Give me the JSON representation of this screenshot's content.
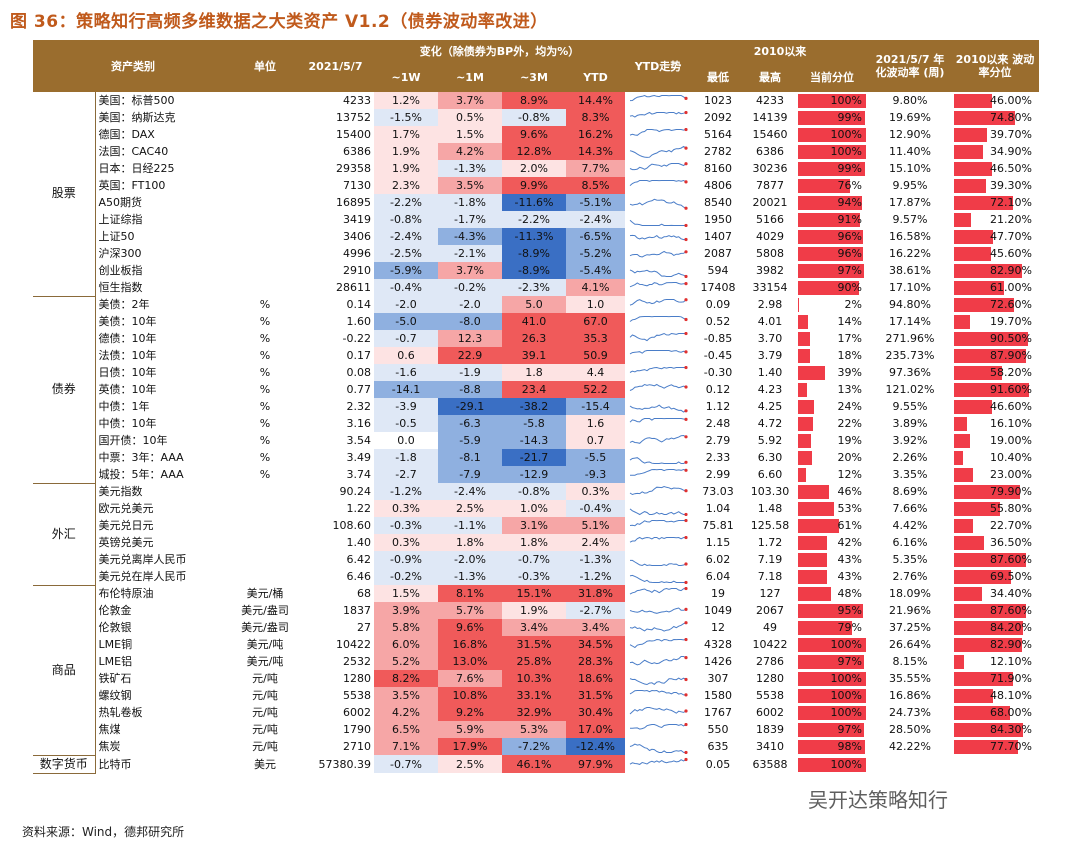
{
  "title": "图 36：策略知行高频多维数据之大类资产 V1.2（债券波动率改进）",
  "source": "资料来源：Wind，德邦研究所",
  "watermark": "吴开达策略知行",
  "header": {
    "asset": "资产类别",
    "unit": "单位",
    "date": "2021/5/7",
    "change_group": "变化（除债券为BP外，均为%）",
    "w1": "~1W",
    "m1": "~1M",
    "m3": "~3M",
    "ytd": "YTD",
    "ytd_trend": "YTD走势",
    "since2010": "2010以来",
    "low": "最低",
    "high": "最高",
    "pct": "当前分位",
    "vol_title": "2021/5/7 年化波动率 (周)",
    "vol_pct_title": "2010以来 波动率分位"
  },
  "colors": {
    "red_strong": "#f05a5a",
    "red_mid": "#f6a6a6",
    "red_light": "#fde3e3",
    "blue_strong": "#3a6fc4",
    "blue_mid": "#8fb0e0",
    "blue_light": "#dfe8f6",
    "bar": "#f03c48"
  },
  "groups": [
    {
      "name": "股票",
      "rows": [
        {
          "name": "美国：标普500",
          "unit": "",
          "value": "4233",
          "w1": "1.2%",
          "m1": "3.7%",
          "m3": "8.9%",
          "ytd": "14.4%",
          "low": "1023",
          "high": "4233",
          "pct": "100%",
          "vol": "9.80%",
          "volpct": "46.00%"
        },
        {
          "name": "美国：纳斯达克",
          "unit": "",
          "value": "13752",
          "w1": "-1.5%",
          "m1": "0.5%",
          "m3": "-0.8%",
          "ytd": "8.3%",
          "low": "2092",
          "high": "14139",
          "pct": "99%",
          "vol": "19.69%",
          "volpct": "74.80%"
        },
        {
          "name": "德国：DAX",
          "unit": "",
          "value": "15400",
          "w1": "1.7%",
          "m1": "1.5%",
          "m3": "9.6%",
          "ytd": "16.2%",
          "low": "5164",
          "high": "15460",
          "pct": "100%",
          "vol": "12.90%",
          "volpct": "39.70%"
        },
        {
          "name": "法国：CAC40",
          "unit": "",
          "value": "6386",
          "w1": "1.9%",
          "m1": "4.2%",
          "m3": "12.8%",
          "ytd": "14.3%",
          "low": "2782",
          "high": "6386",
          "pct": "100%",
          "vol": "11.40%",
          "volpct": "34.90%"
        },
        {
          "name": "日本：日经225",
          "unit": "",
          "value": "29358",
          "w1": "1.9%",
          "m1": "-1.3%",
          "m3": "2.0%",
          "ytd": "7.7%",
          "low": "8160",
          "high": "30236",
          "pct": "99%",
          "vol": "15.10%",
          "volpct": "46.50%"
        },
        {
          "name": "英国：FT100",
          "unit": "",
          "value": "7130",
          "w1": "2.3%",
          "m1": "3.5%",
          "m3": "9.9%",
          "ytd": "8.5%",
          "low": "4806",
          "high": "7877",
          "pct": "76%",
          "vol": "9.95%",
          "volpct": "39.30%"
        },
        {
          "name": "A50期货",
          "unit": "",
          "value": "16895",
          "w1": "-2.2%",
          "m1": "-1.8%",
          "m3": "-11.6%",
          "ytd": "-5.1%",
          "low": "8540",
          "high": "20021",
          "pct": "94%",
          "vol": "17.87%",
          "volpct": "72.10%"
        },
        {
          "name": "上证综指",
          "unit": "",
          "value": "3419",
          "w1": "-0.8%",
          "m1": "-1.7%",
          "m3": "-2.2%",
          "ytd": "-2.4%",
          "low": "1950",
          "high": "5166",
          "pct": "91%",
          "vol": "9.57%",
          "volpct": "21.20%"
        },
        {
          "name": "上证50",
          "unit": "",
          "value": "3406",
          "w1": "-2.4%",
          "m1": "-4.3%",
          "m3": "-11.3%",
          "ytd": "-6.5%",
          "low": "1407",
          "high": "4029",
          "pct": "96%",
          "vol": "16.58%",
          "volpct": "47.70%"
        },
        {
          "name": "沪深300",
          "unit": "",
          "value": "4996",
          "w1": "-2.5%",
          "m1": "-2.1%",
          "m3": "-8.9%",
          "ytd": "-5.2%",
          "low": "2087",
          "high": "5808",
          "pct": "96%",
          "vol": "16.22%",
          "volpct": "45.60%"
        },
        {
          "name": "创业板指",
          "unit": "",
          "value": "2910",
          "w1": "-5.9%",
          "m1": "3.7%",
          "m3": "-8.9%",
          "ytd": "-5.4%",
          "low": "594",
          "high": "3982",
          "pct": "97%",
          "vol": "38.61%",
          "volpct": "82.90%"
        },
        {
          "name": "恒生指数",
          "unit": "",
          "value": "28611",
          "w1": "-0.4%",
          "m1": "-0.2%",
          "m3": "-2.3%",
          "ytd": "4.1%",
          "low": "17408",
          "high": "33154",
          "pct": "90%",
          "vol": "17.10%",
          "volpct": "61.00%"
        }
      ]
    },
    {
      "name": "债券",
      "rows": [
        {
          "name": "美债：2年",
          "unit": "%",
          "value": "0.14",
          "w1": "-2.0",
          "m1": "-2.0",
          "m3": "5.0",
          "ytd": "1.0",
          "low": "0.09",
          "high": "2.98",
          "pct": "2%",
          "vol": "94.80%",
          "volpct": "72.60%"
        },
        {
          "name": "美债：10年",
          "unit": "%",
          "value": "1.60",
          "w1": "-5.0",
          "m1": "-8.0",
          "m3": "41.0",
          "ytd": "67.0",
          "low": "0.52",
          "high": "4.01",
          "pct": "14%",
          "vol": "17.14%",
          "volpct": "19.70%"
        },
        {
          "name": "德债：10年",
          "unit": "%",
          "value": "-0.22",
          "w1": "-0.7",
          "m1": "12.3",
          "m3": "26.3",
          "ytd": "35.3",
          "low": "-0.85",
          "high": "3.70",
          "pct": "17%",
          "vol": "271.96%",
          "volpct": "90.50%"
        },
        {
          "name": "法债：10年",
          "unit": "%",
          "value": "0.17",
          "w1": "0.6",
          "m1": "22.9",
          "m3": "39.1",
          "ytd": "50.9",
          "low": "-0.45",
          "high": "3.79",
          "pct": "18%",
          "vol": "235.73%",
          "volpct": "87.90%"
        },
        {
          "name": "日债：10年",
          "unit": "%",
          "value": "0.08",
          "w1": "-1.6",
          "m1": "-1.9",
          "m3": "1.8",
          "ytd": "4.4",
          "low": "-0.30",
          "high": "1.40",
          "pct": "39%",
          "vol": "97.36%",
          "volpct": "58.20%"
        },
        {
          "name": "英债：10年",
          "unit": "%",
          "value": "0.77",
          "w1": "-14.1",
          "m1": "-8.8",
          "m3": "23.4",
          "ytd": "52.2",
          "low": "0.12",
          "high": "4.23",
          "pct": "13%",
          "vol": "121.02%",
          "volpct": "91.60%"
        },
        {
          "name": "中债：1年",
          "unit": "%",
          "value": "2.32",
          "w1": "-3.9",
          "m1": "-29.1",
          "m3": "-38.2",
          "ytd": "-15.4",
          "low": "1.12",
          "high": "4.25",
          "pct": "24%",
          "vol": "9.55%",
          "volpct": "46.60%"
        },
        {
          "name": "中债：10年",
          "unit": "%",
          "value": "3.16",
          "w1": "-0.5",
          "m1": "-6.3",
          "m3": "-5.8",
          "ytd": "1.6",
          "low": "2.48",
          "high": "4.72",
          "pct": "22%",
          "vol": "3.89%",
          "volpct": "16.10%"
        },
        {
          "name": "国开债：10年",
          "unit": "%",
          "value": "3.54",
          "w1": "0.0",
          "m1": "-5.9",
          "m3": "-14.3",
          "ytd": "0.7",
          "low": "2.79",
          "high": "5.92",
          "pct": "19%",
          "vol": "3.92%",
          "volpct": "19.00%"
        },
        {
          "name": "中票：3年：AAA",
          "unit": "%",
          "value": "3.49",
          "w1": "-1.8",
          "m1": "-8.1",
          "m3": "-21.7",
          "ytd": "-5.5",
          "low": "2.33",
          "high": "6.30",
          "pct": "20%",
          "vol": "2.26%",
          "volpct": "10.40%"
        },
        {
          "name": "城投：5年：AAA",
          "unit": "%",
          "value": "3.74",
          "w1": "-2.7",
          "m1": "-7.9",
          "m3": "-12.9",
          "ytd": "-9.3",
          "low": "2.99",
          "high": "6.60",
          "pct": "12%",
          "vol": "3.35%",
          "volpct": "23.00%"
        }
      ]
    },
    {
      "name": "外汇",
      "rows": [
        {
          "name": "美元指数",
          "unit": "",
          "value": "90.24",
          "w1": "-1.2%",
          "m1": "-2.4%",
          "m3": "-0.8%",
          "ytd": "0.3%",
          "low": "73.03",
          "high": "103.30",
          "pct": "46%",
          "vol": "8.69%",
          "volpct": "79.90%"
        },
        {
          "name": "欧元兑美元",
          "unit": "",
          "value": "1.22",
          "w1": "0.3%",
          "m1": "2.5%",
          "m3": "1.0%",
          "ytd": "-0.4%",
          "low": "1.04",
          "high": "1.48",
          "pct": "53%",
          "vol": "7.66%",
          "volpct": "55.80%"
        },
        {
          "name": "美元兑日元",
          "unit": "",
          "value": "108.60",
          "w1": "-0.3%",
          "m1": "-1.1%",
          "m3": "3.1%",
          "ytd": "5.1%",
          "low": "75.81",
          "high": "125.58",
          "pct": "61%",
          "vol": "4.42%",
          "volpct": "22.70%"
        },
        {
          "name": "英镑兑美元",
          "unit": "",
          "value": "1.40",
          "w1": "0.3%",
          "m1": "1.8%",
          "m3": "1.8%",
          "ytd": "2.4%",
          "low": "1.15",
          "high": "1.72",
          "pct": "42%",
          "vol": "6.16%",
          "volpct": "36.50%"
        },
        {
          "name": "美元兑离岸人民币",
          "unit": "",
          "value": "6.42",
          "w1": "-0.9%",
          "m1": "-2.0%",
          "m3": "-0.7%",
          "ytd": "-1.3%",
          "low": "6.02",
          "high": "7.19",
          "pct": "43%",
          "vol": "5.35%",
          "volpct": "87.60%"
        },
        {
          "name": "美元兑在岸人民币",
          "unit": "",
          "value": "6.46",
          "w1": "-0.2%",
          "m1": "-1.3%",
          "m3": "-0.3%",
          "ytd": "-1.2%",
          "low": "6.04",
          "high": "7.18",
          "pct": "43%",
          "vol": "2.76%",
          "volpct": "69.50%"
        }
      ]
    },
    {
      "name": "商品",
      "rows": [
        {
          "name": "布伦特原油",
          "unit": "美元/桶",
          "value": "68",
          "w1": "1.5%",
          "m1": "8.1%",
          "m3": "15.1%",
          "ytd": "31.8%",
          "low": "19",
          "high": "127",
          "pct": "48%",
          "vol": "18.09%",
          "volpct": "34.40%"
        },
        {
          "name": "伦敦金",
          "unit": "美元/盎司",
          "value": "1837",
          "w1": "3.9%",
          "m1": "5.7%",
          "m3": "1.9%",
          "ytd": "-2.7%",
          "low": "1049",
          "high": "2067",
          "pct": "95%",
          "vol": "21.96%",
          "volpct": "87.60%"
        },
        {
          "name": "伦敦银",
          "unit": "美元/盎司",
          "value": "27",
          "w1": "5.8%",
          "m1": "9.6%",
          "m3": "3.4%",
          "ytd": "3.4%",
          "low": "12",
          "high": "49",
          "pct": "79%",
          "vol": "37.25%",
          "volpct": "84.20%"
        },
        {
          "name": "LME铜",
          "unit": "美元/吨",
          "value": "10422",
          "w1": "6.0%",
          "m1": "16.8%",
          "m3": "31.5%",
          "ytd": "34.5%",
          "low": "4328",
          "high": "10422",
          "pct": "100%",
          "vol": "26.64%",
          "volpct": "82.90%"
        },
        {
          "name": "LME铝",
          "unit": "美元/吨",
          "value": "2532",
          "w1": "5.2%",
          "m1": "13.0%",
          "m3": "25.8%",
          "ytd": "28.3%",
          "low": "1426",
          "high": "2786",
          "pct": "97%",
          "vol": "8.15%",
          "volpct": "12.10%"
        },
        {
          "name": "铁矿石",
          "unit": "元/吨",
          "value": "1280",
          "w1": "8.2%",
          "m1": "7.6%",
          "m3": "10.3%",
          "ytd": "18.6%",
          "low": "307",
          "high": "1280",
          "pct": "100%",
          "vol": "35.55%",
          "volpct": "71.90%"
        },
        {
          "name": "螺纹钢",
          "unit": "元/吨",
          "value": "5538",
          "w1": "3.5%",
          "m1": "10.8%",
          "m3": "33.1%",
          "ytd": "31.5%",
          "low": "1580",
          "high": "5538",
          "pct": "100%",
          "vol": "16.86%",
          "volpct": "48.10%"
        },
        {
          "name": "热轧卷板",
          "unit": "元/吨",
          "value": "6002",
          "w1": "4.2%",
          "m1": "9.2%",
          "m3": "32.9%",
          "ytd": "30.4%",
          "low": "1767",
          "high": "6002",
          "pct": "100%",
          "vol": "24.73%",
          "volpct": "68.00%"
        },
        {
          "name": "焦煤",
          "unit": "元/吨",
          "value": "1790",
          "w1": "6.5%",
          "m1": "5.9%",
          "m3": "5.3%",
          "ytd": "17.0%",
          "low": "550",
          "high": "1839",
          "pct": "97%",
          "vol": "28.50%",
          "volpct": "84.30%"
        },
        {
          "name": "焦炭",
          "unit": "元/吨",
          "value": "2710",
          "w1": "7.1%",
          "m1": "17.9%",
          "m3": "-7.2%",
          "ytd": "-12.4%",
          "low": "635",
          "high": "3410",
          "pct": "98%",
          "vol": "42.22%",
          "volpct": "77.70%"
        }
      ]
    },
    {
      "name": "数字货币",
      "rows": [
        {
          "name": "比特币",
          "unit": "美元",
          "value": "57380.39",
          "w1": "-0.7%",
          "m1": "2.5%",
          "m3": "46.1%",
          "ytd": "97.9%",
          "low": "0.05",
          "high": "63588",
          "pct": "100%",
          "vol": "",
          "volpct": ""
        }
      ]
    }
  ]
}
